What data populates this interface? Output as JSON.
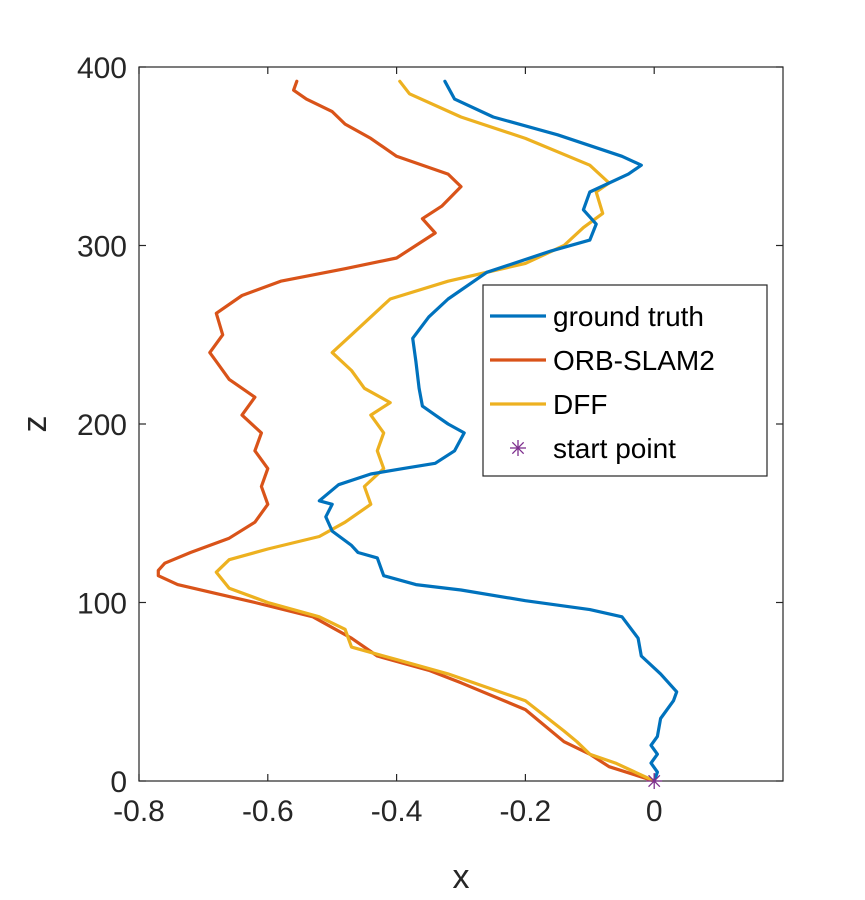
{
  "chart_data": {
    "type": "line",
    "title": "",
    "xlabel": "x",
    "ylabel": "z",
    "xlim": [
      -0.8,
      0.2
    ],
    "ylim": [
      0,
      400
    ],
    "xticks": [
      -0.8,
      -0.6,
      -0.4,
      -0.2,
      0
    ],
    "xtick_labels": [
      "-0.8",
      "-0.6",
      "-0.4",
      "-0.2",
      "0"
    ],
    "yticks": [
      0,
      100,
      200,
      300,
      400
    ],
    "ytick_labels": [
      "0",
      "100",
      "200",
      "300",
      "400"
    ],
    "grid": false,
    "legend_position": "right-center",
    "series": [
      {
        "name": "ground truth",
        "color": "#0072BD",
        "points": [
          [
            0,
            0
          ],
          [
            0.005,
            5
          ],
          [
            -0.005,
            10
          ],
          [
            0.005,
            15
          ],
          [
            -0.005,
            20
          ],
          [
            0.005,
            25
          ],
          [
            0.01,
            35
          ],
          [
            0.03,
            45
          ],
          [
            0.035,
            50
          ],
          [
            0.01,
            60
          ],
          [
            -0.02,
            70
          ],
          [
            -0.025,
            80
          ],
          [
            -0.05,
            92
          ],
          [
            -0.1,
            96
          ],
          [
            -0.2,
            101
          ],
          [
            -0.3,
            107
          ],
          [
            -0.37,
            110
          ],
          [
            -0.42,
            115
          ],
          [
            -0.43,
            125
          ],
          [
            -0.46,
            128
          ],
          [
            -0.47,
            132
          ],
          [
            -0.5,
            140
          ],
          [
            -0.51,
            148
          ],
          [
            -0.5,
            155
          ],
          [
            -0.52,
            157
          ],
          [
            -0.49,
            166
          ],
          [
            -0.44,
            172
          ],
          [
            -0.39,
            175
          ],
          [
            -0.34,
            178
          ],
          [
            -0.31,
            185
          ],
          [
            -0.295,
            195
          ],
          [
            -0.32,
            200
          ],
          [
            -0.34,
            205
          ],
          [
            -0.36,
            210
          ],
          [
            -0.365,
            220
          ],
          [
            -0.37,
            235
          ],
          [
            -0.375,
            248
          ],
          [
            -0.35,
            260
          ],
          [
            -0.32,
            270
          ],
          [
            -0.26,
            285
          ],
          [
            -0.16,
            297
          ],
          [
            -0.1,
            303
          ],
          [
            -0.09,
            312
          ],
          [
            -0.11,
            320
          ],
          [
            -0.1,
            330
          ],
          [
            -0.04,
            340
          ],
          [
            -0.02,
            345
          ],
          [
            -0.05,
            350
          ],
          [
            -0.15,
            362
          ],
          [
            -0.25,
            372
          ],
          [
            -0.31,
            382
          ],
          [
            -0.325,
            392
          ]
        ]
      },
      {
        "name": "ORB-SLAM2",
        "color": "#D95319",
        "points": [
          [
            0,
            0
          ],
          [
            -0.07,
            8
          ],
          [
            -0.1,
            15
          ],
          [
            -0.14,
            22
          ],
          [
            -0.2,
            40
          ],
          [
            -0.3,
            55
          ],
          [
            -0.35,
            62
          ],
          [
            -0.43,
            70
          ],
          [
            -0.47,
            80
          ],
          [
            -0.53,
            92
          ],
          [
            -0.62,
            100
          ],
          [
            -0.68,
            105
          ],
          [
            -0.74,
            110
          ],
          [
            -0.77,
            115
          ],
          [
            -0.77,
            118
          ],
          [
            -0.76,
            122
          ],
          [
            -0.72,
            128
          ],
          [
            -0.66,
            136
          ],
          [
            -0.62,
            145
          ],
          [
            -0.6,
            155
          ],
          [
            -0.61,
            165
          ],
          [
            -0.6,
            175
          ],
          [
            -0.62,
            185
          ],
          [
            -0.61,
            195
          ],
          [
            -0.64,
            205
          ],
          [
            -0.62,
            215
          ],
          [
            -0.66,
            225
          ],
          [
            -0.68,
            235
          ],
          [
            -0.69,
            240
          ],
          [
            -0.67,
            250
          ],
          [
            -0.68,
            262
          ],
          [
            -0.64,
            272
          ],
          [
            -0.58,
            280
          ],
          [
            -0.48,
            287
          ],
          [
            -0.4,
            293
          ],
          [
            -0.37,
            300
          ],
          [
            -0.34,
            307
          ],
          [
            -0.36,
            315
          ],
          [
            -0.33,
            322
          ],
          [
            -0.3,
            333
          ],
          [
            -0.32,
            340
          ],
          [
            -0.4,
            350
          ],
          [
            -0.44,
            360
          ],
          [
            -0.48,
            368
          ],
          [
            -0.5,
            375
          ],
          [
            -0.54,
            382
          ],
          [
            -0.56,
            387
          ],
          [
            -0.555,
            392
          ]
        ]
      },
      {
        "name": "DFF",
        "color": "#EDB120",
        "points": [
          [
            0,
            0
          ],
          [
            -0.06,
            10
          ],
          [
            -0.1,
            15
          ],
          [
            -0.12,
            22
          ],
          [
            -0.14,
            28
          ],
          [
            -0.2,
            45
          ],
          [
            -0.32,
            60
          ],
          [
            -0.4,
            68
          ],
          [
            -0.47,
            75
          ],
          [
            -0.48,
            85
          ],
          [
            -0.52,
            92
          ],
          [
            -0.6,
            100
          ],
          [
            -0.66,
            108
          ],
          [
            -0.68,
            117
          ],
          [
            -0.66,
            124
          ],
          [
            -0.6,
            130
          ],
          [
            -0.52,
            137
          ],
          [
            -0.48,
            145
          ],
          [
            -0.44,
            155
          ],
          [
            -0.45,
            165
          ],
          [
            -0.42,
            175
          ],
          [
            -0.43,
            185
          ],
          [
            -0.42,
            195
          ],
          [
            -0.44,
            205
          ],
          [
            -0.41,
            212
          ],
          [
            -0.45,
            220
          ],
          [
            -0.47,
            230
          ],
          [
            -0.5,
            240
          ],
          [
            -0.47,
            250
          ],
          [
            -0.44,
            260
          ],
          [
            -0.41,
            270
          ],
          [
            -0.32,
            280
          ],
          [
            -0.2,
            290
          ],
          [
            -0.14,
            300
          ],
          [
            -0.11,
            310
          ],
          [
            -0.08,
            318
          ],
          [
            -0.09,
            330
          ],
          [
            -0.07,
            335
          ],
          [
            -0.1,
            345
          ],
          [
            -0.2,
            360
          ],
          [
            -0.3,
            372
          ],
          [
            -0.38,
            385
          ],
          [
            -0.395,
            392
          ]
        ]
      },
      {
        "name": "start point",
        "color": "#7E2F8E",
        "marker": "asterisk",
        "points": [
          [
            0,
            0
          ]
        ]
      }
    ]
  }
}
